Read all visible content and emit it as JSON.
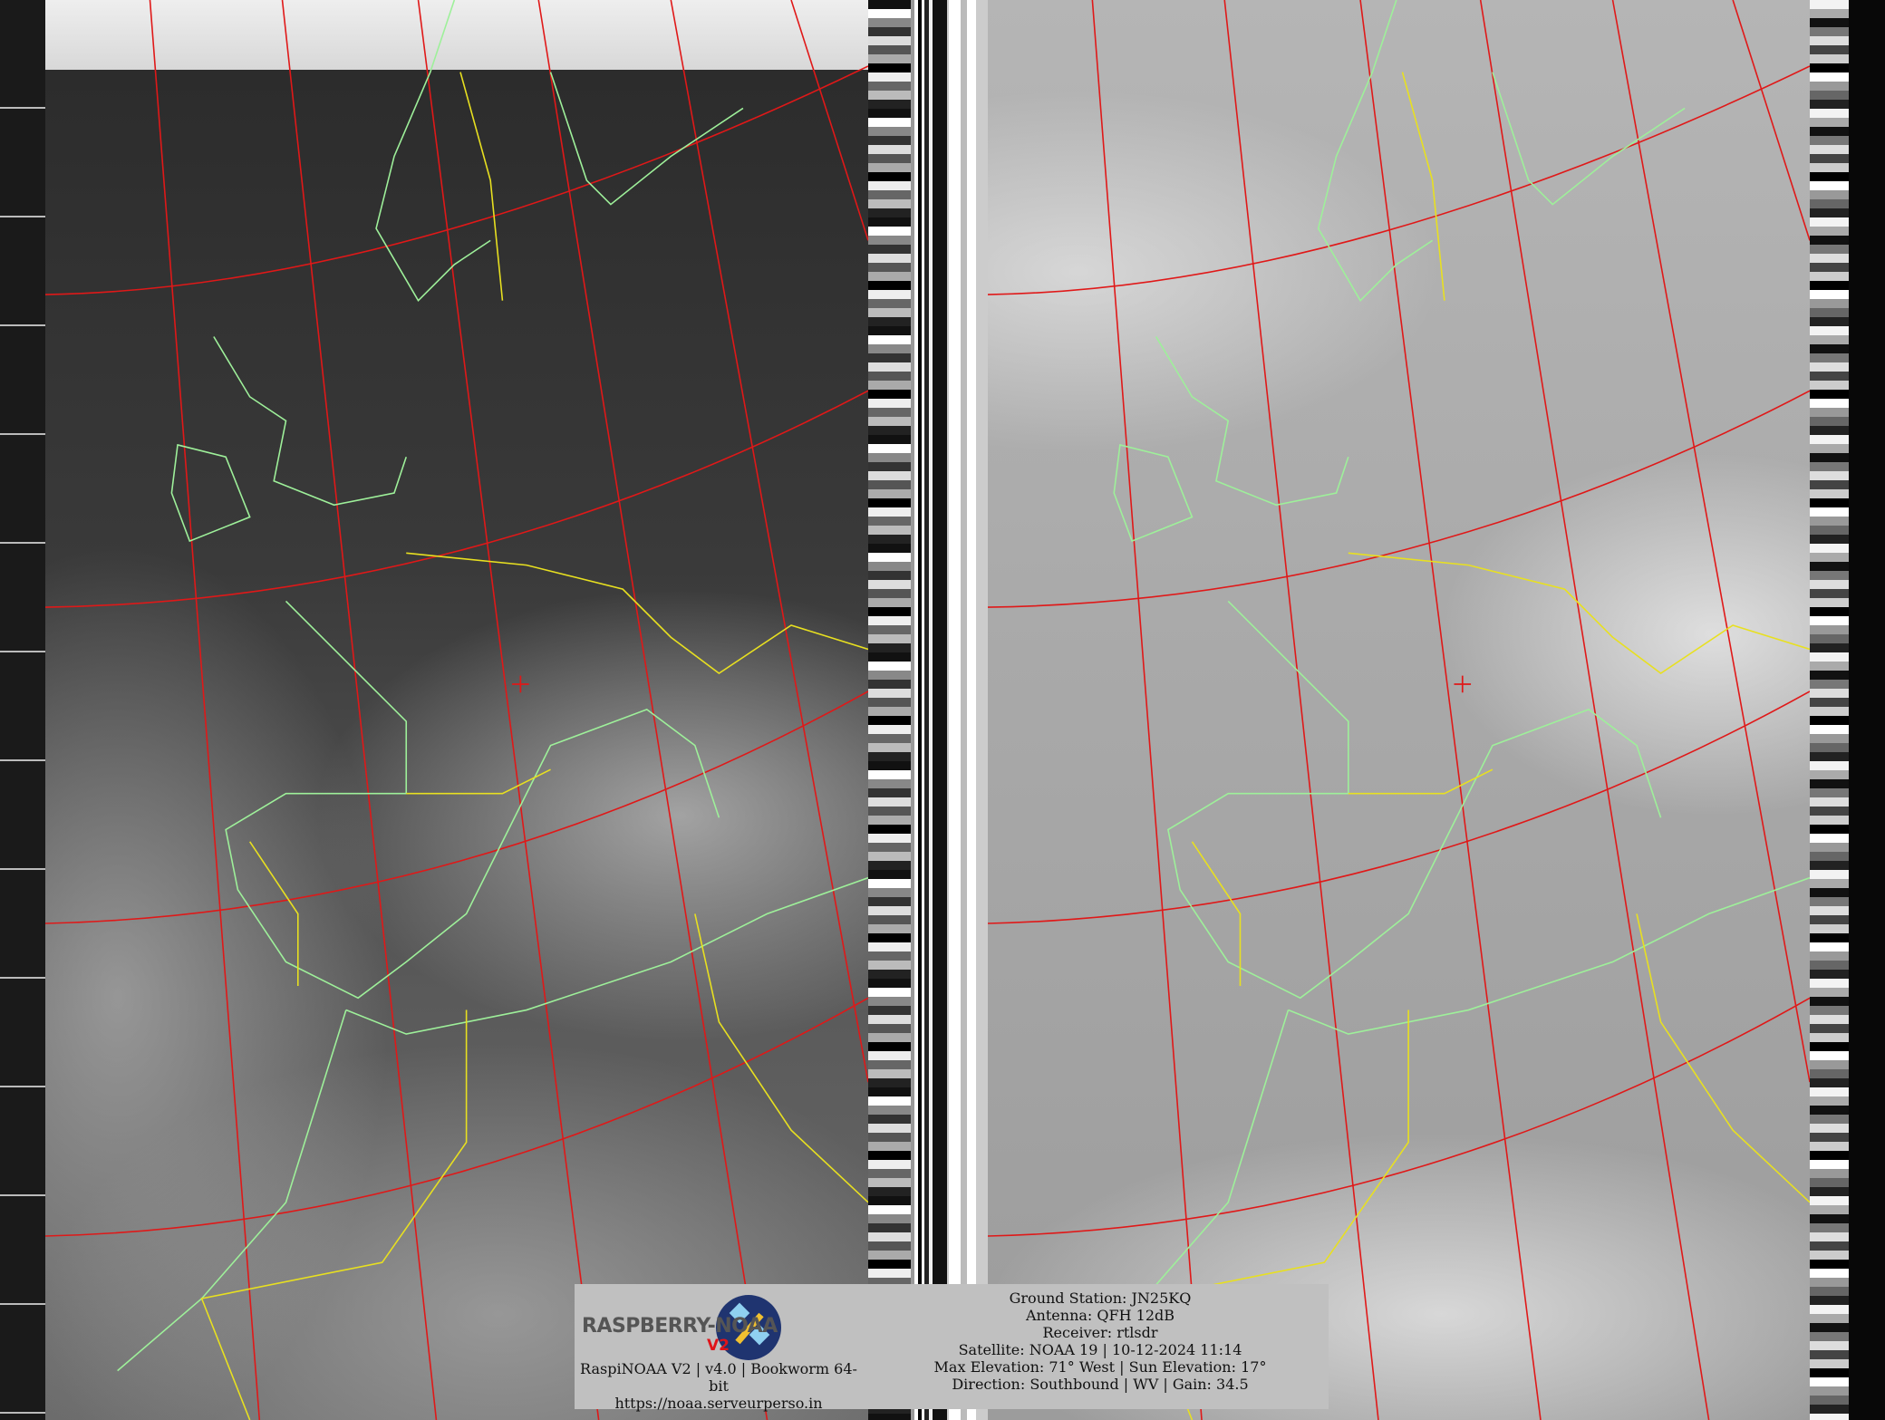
{
  "colors": {
    "graticule": "#e01818",
    "coastline": "#9ef09a",
    "borders": "#e8e020",
    "panel_bg": "#c0c0c0",
    "logo_accent": "#e0141a"
  },
  "logo": {
    "text": "RASPBERRY-NOAA",
    "badge": "V2",
    "icon": "satellite-icon"
  },
  "left_info": {
    "line1": "RaspiNOAA V2 | v4.0 | Bookworm 64-bit",
    "url": "https://noaa.serveurperso.in"
  },
  "right_info": {
    "ground_station": "Ground Station: JN25KQ",
    "antenna": "Antenna: QFH 12dB",
    "receiver": "Receiver: rtlsdr",
    "satellite": "Satellite: NOAA 19 | 10-12-2024 11:14",
    "elevation": "Max Elevation: 71° West | Sun Elevation: 17°",
    "direction": "Direction: Southbound | WV | Gain: 34.5"
  }
}
